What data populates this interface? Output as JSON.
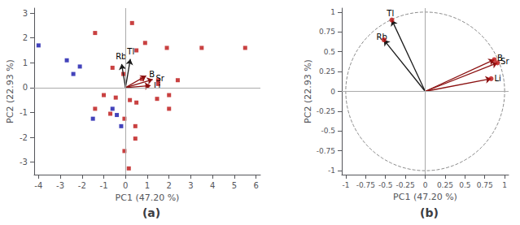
{
  "chart_data": [
    {
      "type": "scatter",
      "title": "(a)",
      "xlabel": "PC1 (47.20 %)",
      "ylabel": "PC2 (22.93 %)",
      "xlim": [
        -4.2,
        6.2
      ],
      "ylim": [
        -3.5,
        3.2
      ],
      "xticks": [
        -4,
        -3,
        -2,
        -1,
        0,
        1,
        2,
        3,
        4,
        5,
        6
      ],
      "yticks": [
        -3,
        -2,
        -1,
        0,
        1,
        2,
        3
      ],
      "grid": false,
      "hlines": [
        0
      ],
      "vlines": [
        0
      ],
      "series": [
        {
          "color": "#1414AA",
          "marker": "square",
          "x": [
            -4.0,
            -2.7,
            -2.1,
            -2.4,
            -0.6,
            -1.5,
            -0.2,
            -0.4
          ],
          "y": [
            1.7,
            1.1,
            0.85,
            0.55,
            -0.85,
            -1.25,
            -1.55,
            -1.1
          ]
        },
        {
          "color": "#BB1111",
          "marker": "square",
          "x": [
            -1.4,
            0.3,
            0.5,
            0.9,
            1.9,
            3.5,
            5.5,
            -0.6,
            -0.1,
            0.75,
            1.5,
            2.4,
            1.0,
            1.5,
            -1.0,
            -0.45,
            0.2,
            0.5,
            1.45,
            2.0,
            -1.4,
            -0.7,
            -0.05,
            0.45,
            2.0,
            0.45,
            -0.05,
            0.15
          ],
          "y": [
            2.2,
            2.6,
            1.5,
            1.8,
            1.6,
            1.6,
            1.6,
            0.8,
            0.55,
            0.35,
            0.3,
            0.3,
            0.05,
            0.15,
            -0.3,
            -0.4,
            -0.5,
            -0.6,
            -0.45,
            -0.3,
            -0.85,
            -1.05,
            -1.25,
            -1.55,
            -0.85,
            -2.05,
            -2.55,
            -3.25
          ]
        }
      ],
      "vectors": [
        {
          "label": "Tl",
          "x0": 0.0,
          "y0": 0.0,
          "x1": 0.22,
          "y1": 1.15,
          "color": "#1a1a1a"
        },
        {
          "label": "Rb",
          "x0": 0.0,
          "y0": 0.0,
          "x1": -0.18,
          "y1": 0.95,
          "color": "#1a1a1a"
        },
        {
          "label": "B",
          "x0": 0.0,
          "y0": 0.0,
          "x1": 0.95,
          "y1": 0.48,
          "color": "#8B1010"
        },
        {
          "label": "Sr",
          "x0": 0.0,
          "y0": 0.0,
          "x1": 1.25,
          "y1": 0.33,
          "color": "#8B1010"
        },
        {
          "label": "Li",
          "x0": 0.0,
          "y0": 0.0,
          "x1": 1.15,
          "y1": 0.08,
          "color": "#8B1010"
        }
      ]
    },
    {
      "type": "biplot",
      "title": "(b)",
      "xlabel": "PC1 (47.20 %)",
      "ylabel": "PC2 (22.93 %)",
      "xlim": [
        -1.05,
        1.05
      ],
      "ylim": [
        -1.05,
        1.05
      ],
      "xticks": [
        -1,
        -0.75,
        -0.5,
        -0.25,
        0,
        0.25,
        0.5,
        0.75,
        1
      ],
      "yticks": [
        -1,
        -0.75,
        -0.5,
        -0.25,
        0,
        0.25,
        0.5,
        0.75,
        1
      ],
      "grid": false,
      "hlines": [
        0
      ],
      "vlines": [
        0
      ],
      "circle_radius": 1,
      "color": "#BB1111",
      "marker": "circle",
      "vectors": [
        {
          "label": "Tl",
          "x0": 0.0,
          "y0": 0.0,
          "x1": -0.42,
          "y1": 0.9,
          "color": "#1a1a1a"
        },
        {
          "label": "Rb",
          "x0": 0.0,
          "y0": 0.0,
          "x1": -0.52,
          "y1": 0.65,
          "color": "#1a1a1a"
        },
        {
          "label": "B",
          "x0": 0.0,
          "y0": 0.0,
          "x1": 0.87,
          "y1": 0.4,
          "color": "#8B1010"
        },
        {
          "label": "Sr",
          "x0": 0.0,
          "y0": 0.0,
          "x1": 0.91,
          "y1": 0.36,
          "color": "#8B1010"
        },
        {
          "label": "Li",
          "x0": 0.0,
          "y0": 0.0,
          "x1": 0.83,
          "y1": 0.16,
          "color": "#8B1010"
        }
      ]
    }
  ]
}
